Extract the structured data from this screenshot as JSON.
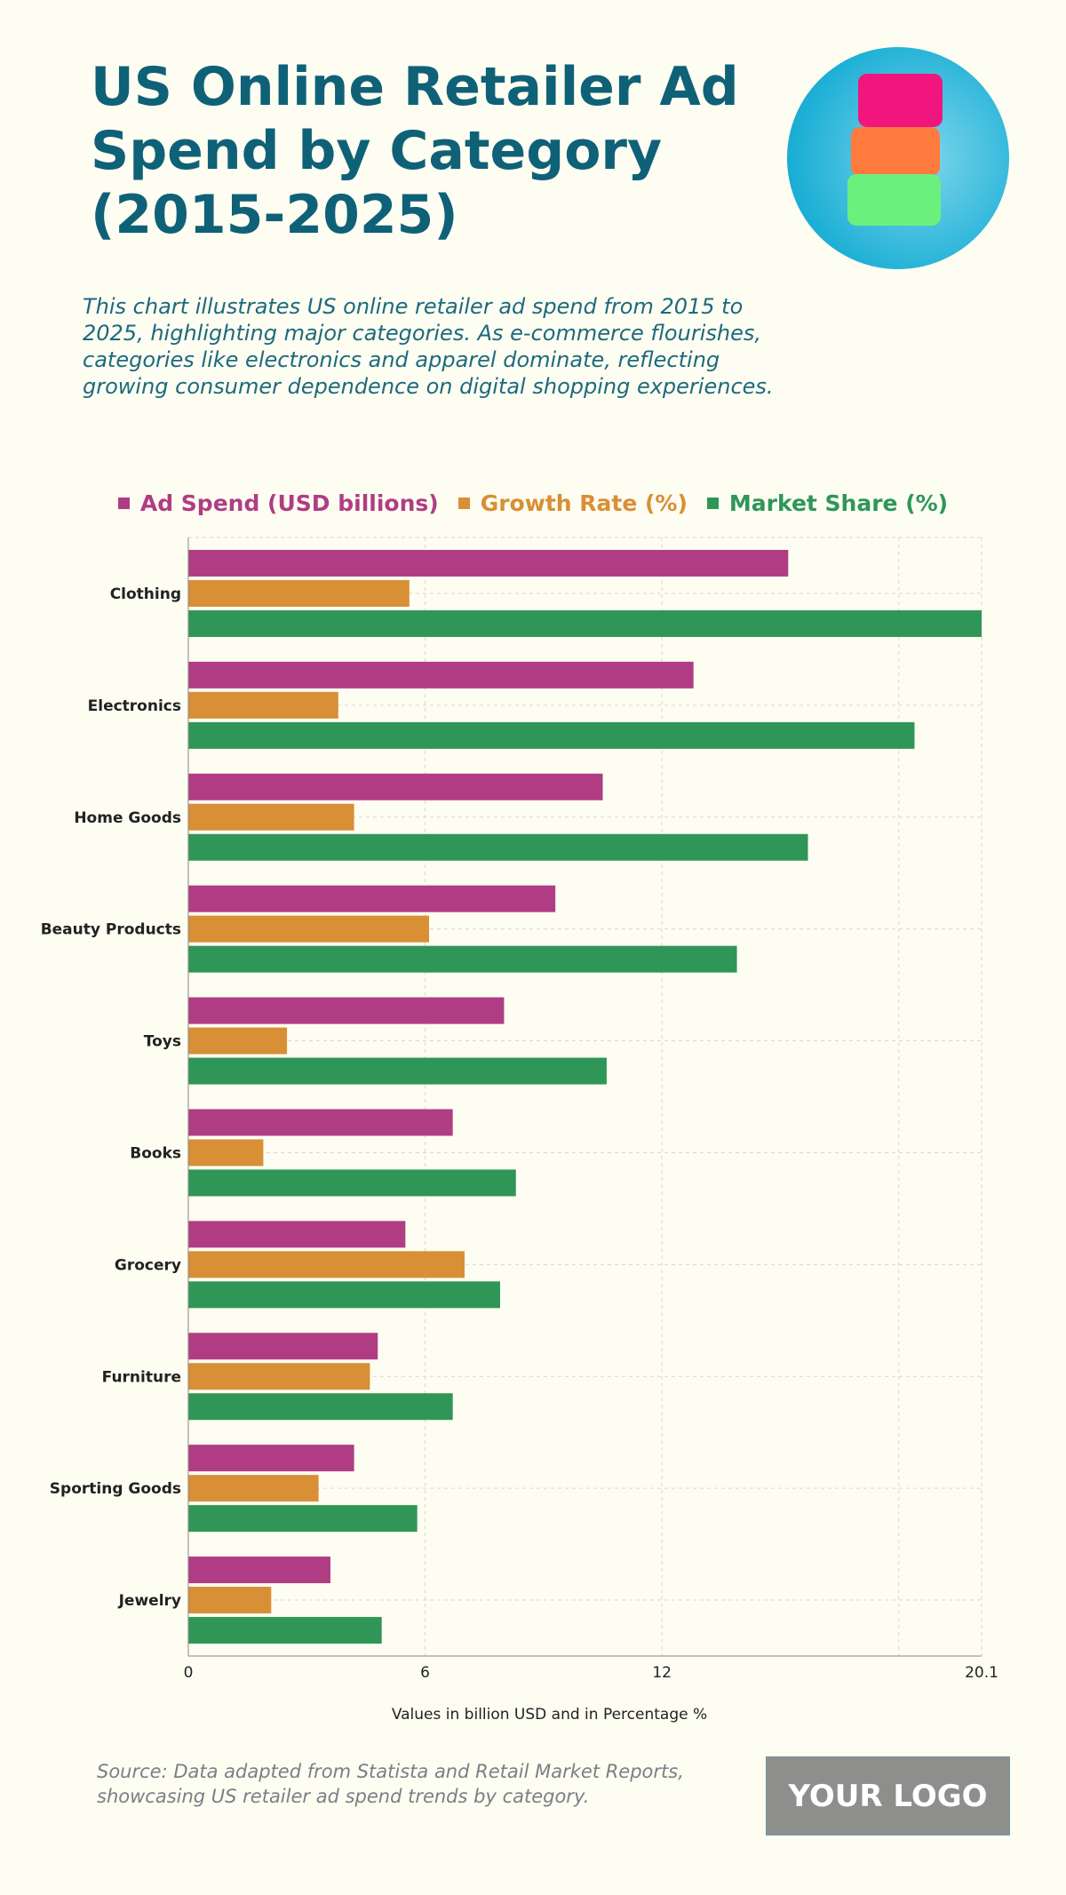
{
  "header": {
    "title": "US Online Retailer Ad Spend by Category (2015-2025)",
    "description": "This chart illustrates US online retailer ad spend from 2015 to 2025, highlighting major categories. As e-commerce flourishes, categories like electronics and apparel dominate, reflecting growing consumer dependence on digital shopping experiences."
  },
  "colors": {
    "title": "#0f6177",
    "ad_spend": "#b03d84",
    "growth_rate": "#d98f35",
    "market_share": "#2f9657",
    "background": "#fdfdf2"
  },
  "chart_data": {
    "type": "bar",
    "orientation": "horizontal",
    "categories": [
      "Clothing",
      "Electronics",
      "Home Goods",
      "Beauty Products",
      "Toys",
      "Books",
      "Grocery",
      "Furniture",
      "Sporting Goods",
      "Jewelry"
    ],
    "series": [
      {
        "name": "Ad Spend (USD billions)",
        "color": "#b03d84",
        "values": [
          15.2,
          12.8,
          10.5,
          9.3,
          8.0,
          6.7,
          5.5,
          4.8,
          4.2,
          3.6
        ]
      },
      {
        "name": "Growth Rate (%)",
        "color": "#d98f35",
        "values": [
          5.6,
          3.8,
          4.2,
          6.1,
          2.5,
          1.9,
          7.0,
          4.6,
          3.3,
          2.1
        ]
      },
      {
        "name": "Market Share (%)",
        "color": "#2f9657",
        "values": [
          20.1,
          18.4,
          15.7,
          13.9,
          10.6,
          8.3,
          7.9,
          6.7,
          5.8,
          4.9
        ]
      }
    ],
    "xlabel": "Values in billion USD and in Percentage %",
    "xlim": [
      0,
      20.1
    ],
    "xticks": [
      "0",
      "6",
      "12",
      "20.1"
    ],
    "grid": true,
    "legend_placement": "top"
  },
  "footer": {
    "source": "Source: Data adapted from Statista and Retail Market Reports, showcasing US retailer ad spend trends by category.",
    "logo": "YOUR LOGO"
  }
}
